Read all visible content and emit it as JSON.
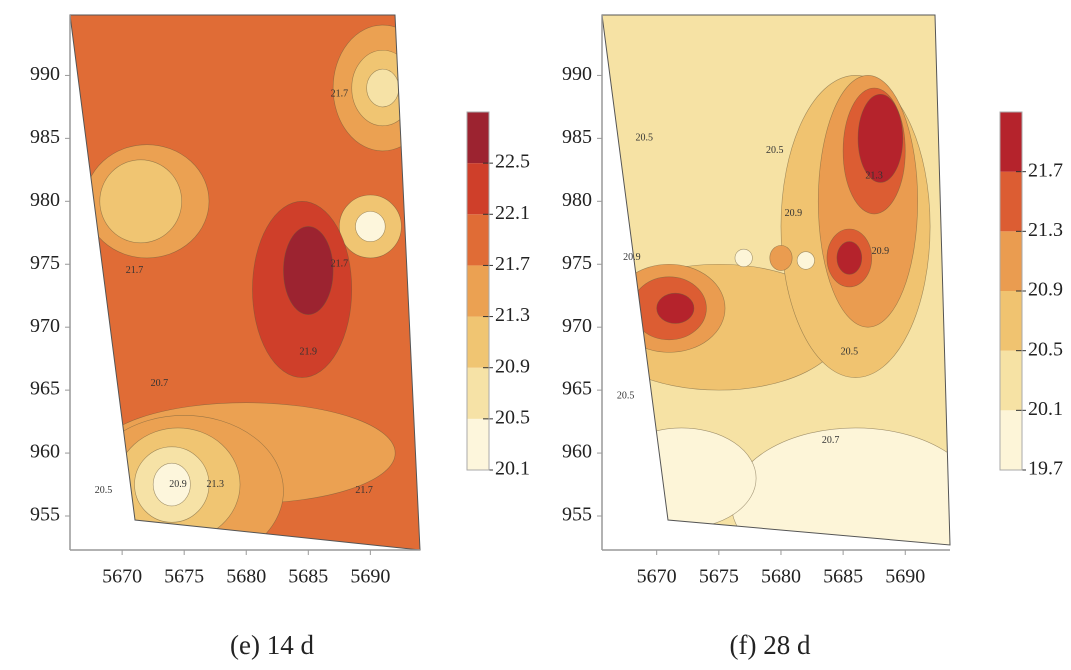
{
  "chart_data": [
    {
      "type": "contour",
      "caption": "(e) 14 d",
      "xlim": [
        5665.8,
        5694.0
      ],
      "ylim": [
        952.3,
        994.8
      ],
      "xticks": [
        5670,
        5675,
        5680,
        5685,
        5690
      ],
      "yticks": [
        955,
        960,
        965,
        970,
        975,
        980,
        985,
        990
      ],
      "colorbar": {
        "clim": [
          20.1,
          22.9
        ],
        "ticks": [
          20.1,
          20.5,
          20.9,
          21.3,
          21.7,
          22.1,
          22.5
        ],
        "colors": [
          "#fdf6dc",
          "#f6e2a6",
          "#f0c572",
          "#eba152",
          "#e06c36",
          "#cf3f2a",
          "#9c2330"
        ]
      },
      "annotations": [
        {
          "text": "21.7",
          "x": 5687.5,
          "y": 988.5
        },
        {
          "text": "21.7",
          "x": 5671,
          "y": 974.5
        },
        {
          "text": "21.7",
          "x": 5687.5,
          "y": 975
        },
        {
          "text": "21.9",
          "x": 5685,
          "y": 968
        },
        {
          "text": "20.7",
          "x": 5673,
          "y": 965.5
        },
        {
          "text": "20.5",
          "x": 5668.5,
          "y": 957
        },
        {
          "text": "20.9",
          "x": 5674.5,
          "y": 957.5
        },
        {
          "text": "21.3",
          "x": 5677.5,
          "y": 957.5
        },
        {
          "text": "21.7",
          "x": 5689.5,
          "y": 957
        }
      ]
    },
    {
      "type": "contour",
      "caption": "(f) 28 d",
      "xlim": [
        5665.6,
        5693.6
      ],
      "ylim": [
        952.3,
        994.8
      ],
      "xticks": [
        5670,
        5675,
        5680,
        5685,
        5690
      ],
      "yticks": [
        955,
        960,
        965,
        970,
        975,
        980,
        985,
        990
      ],
      "colorbar": {
        "clim": [
          19.7,
          22.1
        ],
        "ticks": [
          19.7,
          20.1,
          20.5,
          20.9,
          21.3,
          21.7
        ],
        "colors": [
          "#fdf5d8",
          "#f6e2a4",
          "#f0c370",
          "#ea9c50",
          "#dc5d33",
          "#b5232c"
        ]
      },
      "annotations": [
        {
          "text": "20.5",
          "x": 5669,
          "y": 985
        },
        {
          "text": "20.5",
          "x": 5679.5,
          "y": 984
        },
        {
          "text": "20.9",
          "x": 5681,
          "y": 979
        },
        {
          "text": "21.3",
          "x": 5687.5,
          "y": 982
        },
        {
          "text": "20.9",
          "x": 5668,
          "y": 975.5
        },
        {
          "text": "20.9",
          "x": 5688,
          "y": 976
        },
        {
          "text": "20.5",
          "x": 5685.5,
          "y": 968
        },
        {
          "text": "20.5",
          "x": 5667.5,
          "y": 964.5
        },
        {
          "text": "20.7",
          "x": 5684,
          "y": 961
        }
      ]
    }
  ]
}
